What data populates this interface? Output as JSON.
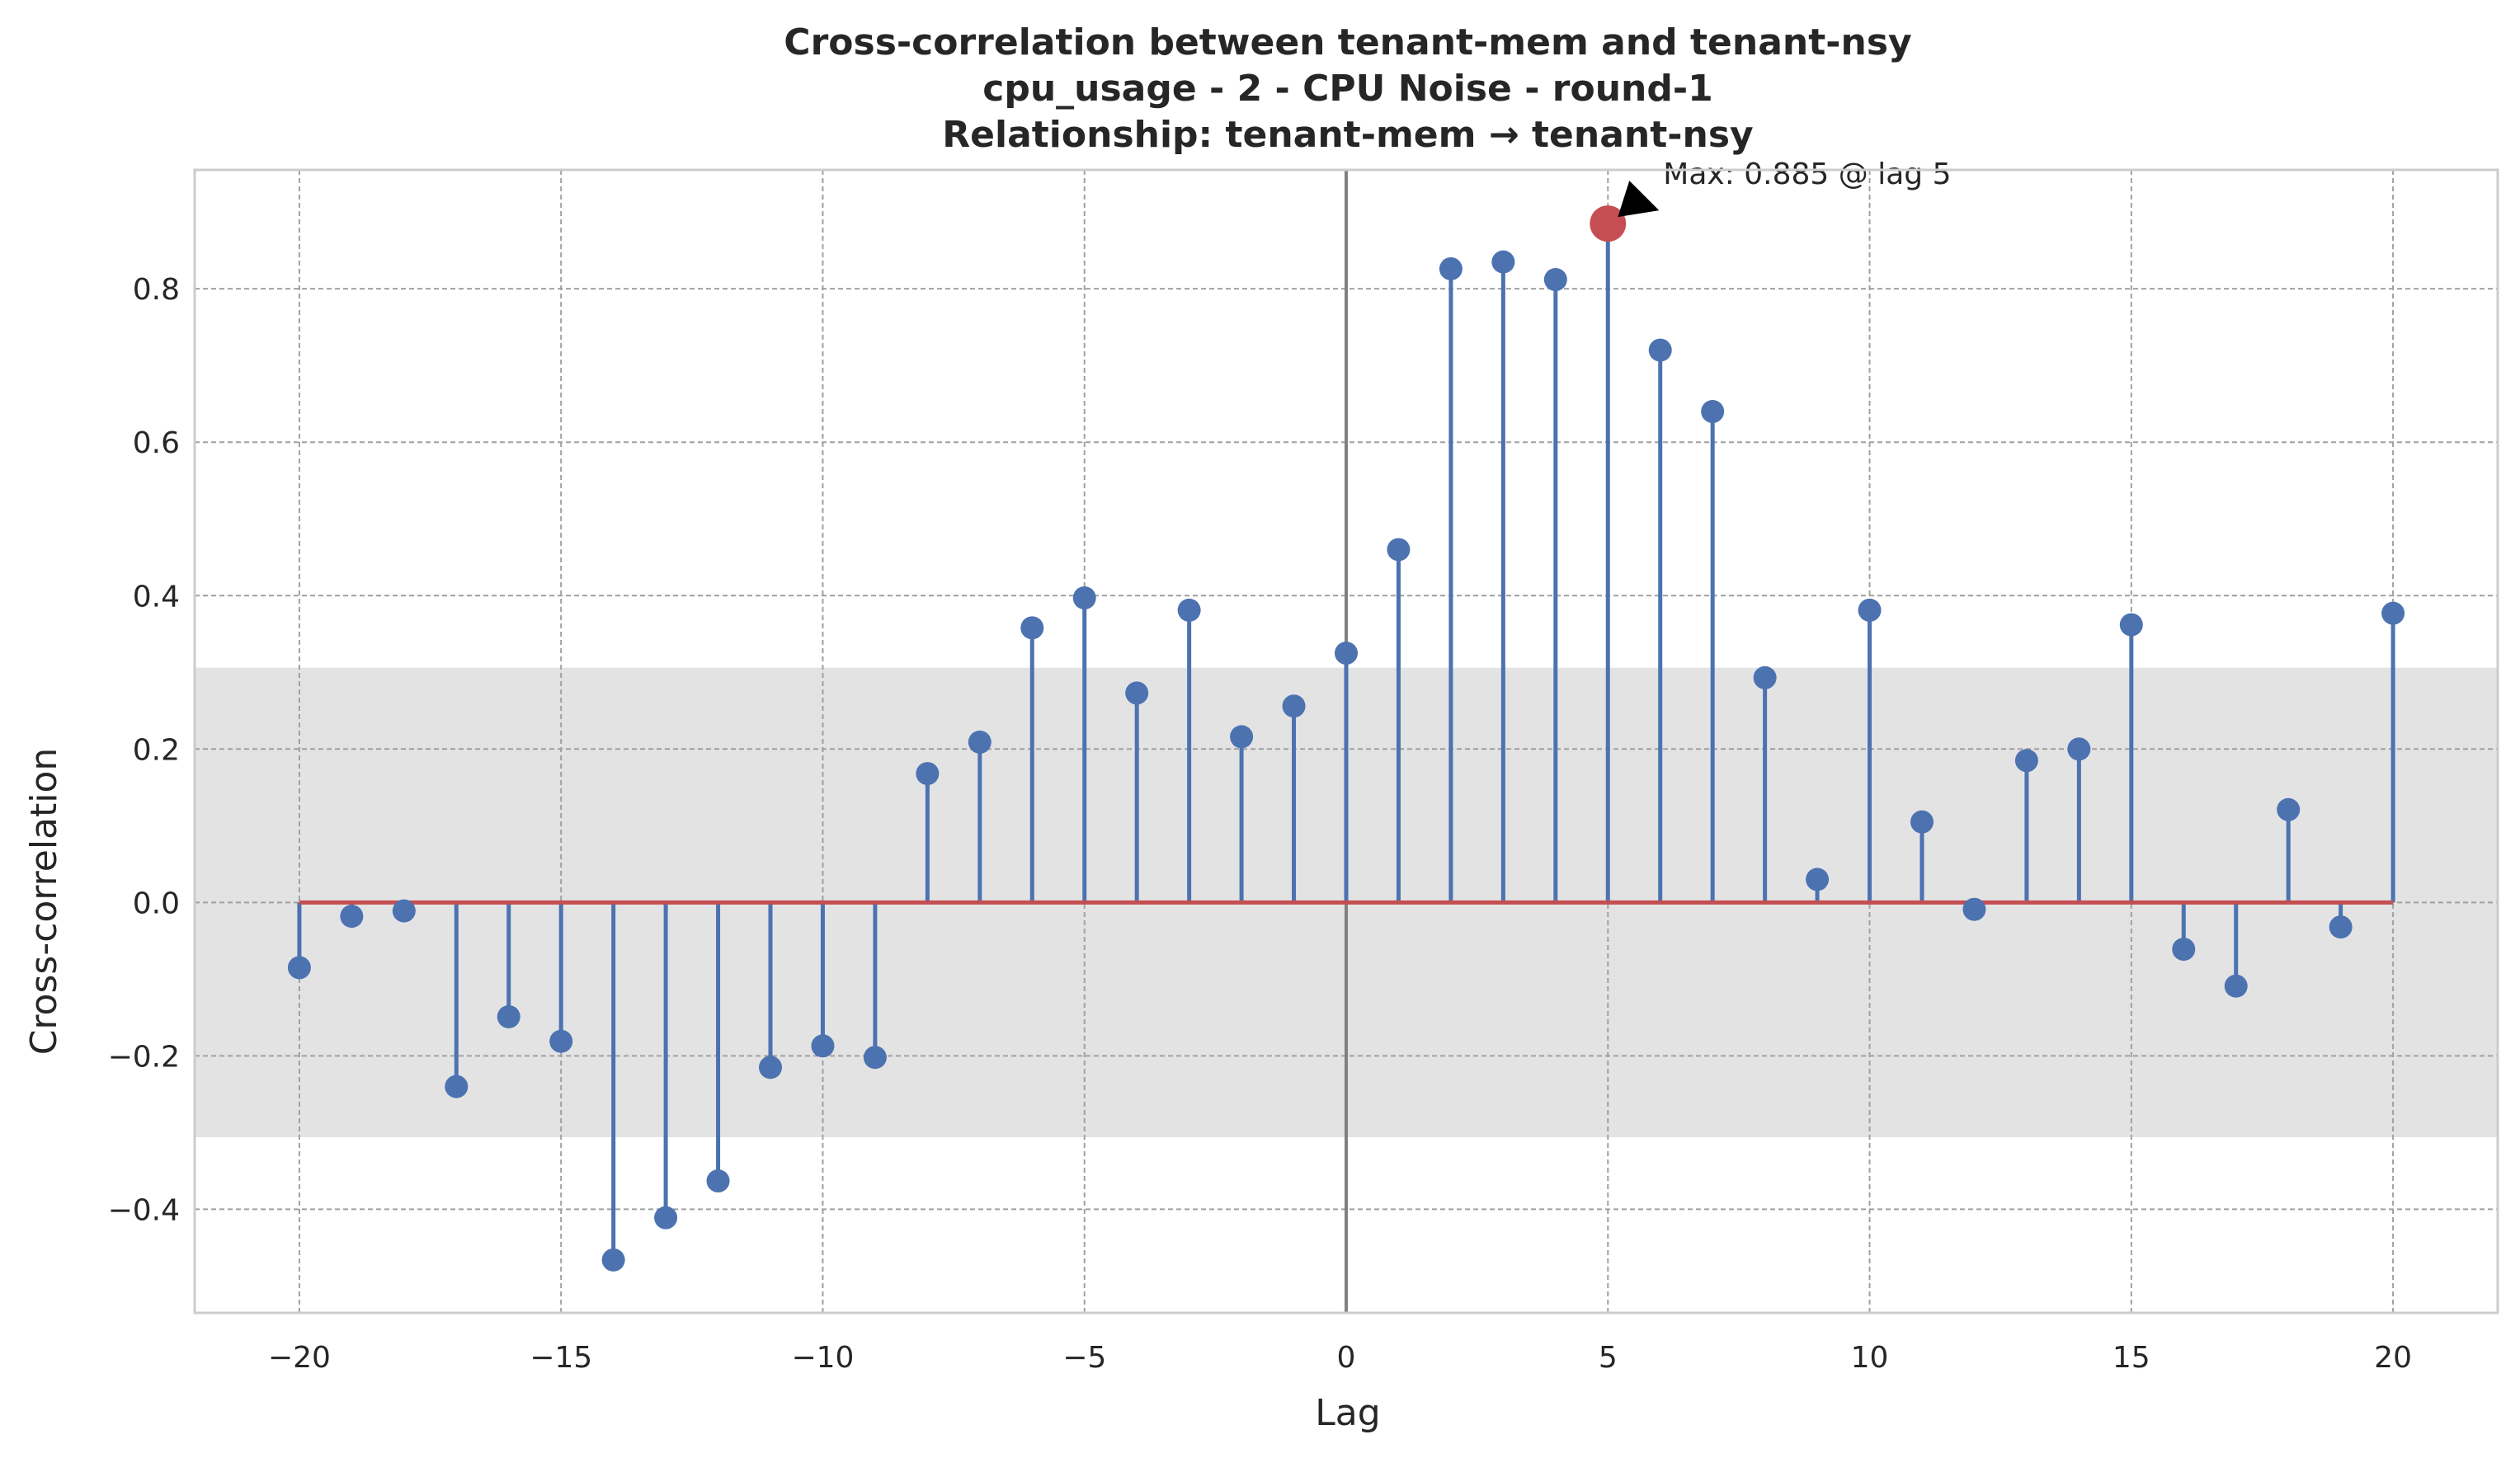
{
  "chart_data": {
    "type": "stem",
    "title_lines": [
      "Cross-correlation between tenant-mem and tenant-nsy",
      "cpu_usage - 2 - CPU Noise - round-1",
      "Relationship: tenant-mem → tenant-nsy"
    ],
    "xlabel": "Lag",
    "ylabel": "Cross-correlation",
    "xlim": [
      -22,
      22
    ],
    "ylim": [
      -0.535,
      0.955
    ],
    "xticks": [
      -20,
      -15,
      -10,
      -5,
      0,
      5,
      10,
      15,
      20
    ],
    "xtick_labels": [
      "−20",
      "−15",
      "−10",
      "−5",
      "0",
      "5",
      "10",
      "15",
      "20"
    ],
    "yticks": [
      -0.4,
      -0.2,
      0.0,
      0.2,
      0.4,
      0.6,
      0.8
    ],
    "ytick_labels": [
      "−0.4",
      "−0.2",
      "0.0",
      "0.2",
      "0.4",
      "0.6",
      "0.8"
    ],
    "grid": true,
    "confidence_band": [
      -0.306,
      0.306
    ],
    "zero_vline": 0,
    "lags": [
      -20,
      -19,
      -18,
      -17,
      -16,
      -15,
      -14,
      -13,
      -12,
      -11,
      -10,
      -9,
      -8,
      -7,
      -6,
      -5,
      -4,
      -3,
      -2,
      -1,
      0,
      1,
      2,
      3,
      4,
      5,
      6,
      7,
      8,
      9,
      10,
      11,
      12,
      13,
      14,
      15,
      16,
      17,
      18,
      19,
      20
    ],
    "values": [
      -0.085,
      -0.018,
      -0.011,
      -0.24,
      -0.149,
      -0.181,
      -0.466,
      -0.411,
      -0.363,
      -0.215,
      -0.187,
      -0.202,
      0.168,
      0.209,
      0.358,
      0.397,
      0.273,
      0.381,
      0.216,
      0.256,
      0.325,
      0.46,
      0.826,
      0.835,
      0.812,
      0.885,
      0.72,
      0.64,
      0.293,
      0.03,
      0.381,
      0.105,
      -0.009,
      0.185,
      0.2,
      0.362,
      -0.061,
      -0.109,
      0.121,
      -0.032,
      0.377
    ],
    "max_point": {
      "lag": 5,
      "value": 0.885
    },
    "annotation": "Max: 0.885 @ lag 5",
    "colors": {
      "stem": "#4c72b0",
      "baseline": "#c44e52",
      "max_marker": "#c44e52",
      "band": "#e3e3e4",
      "zero_line": "#808080",
      "grid": "#a0a0a0",
      "frame": "#cccccc",
      "text": "#262626"
    }
  }
}
